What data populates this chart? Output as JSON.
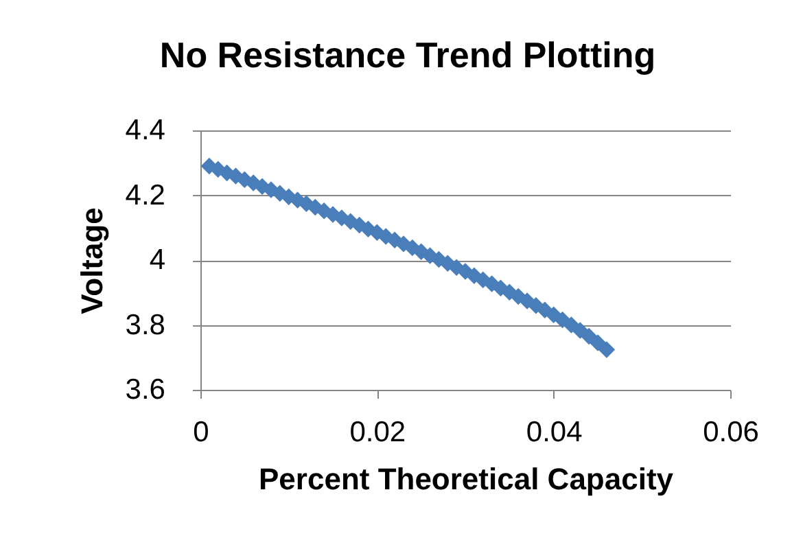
{
  "chart_data": {
    "type": "scatter",
    "title": "No Resistance Trend Plotting",
    "xlabel": "Percent Theoretical Capacity",
    "ylabel": "Voltage",
    "x": [
      0.001,
      0.002,
      0.003,
      0.004,
      0.005,
      0.006,
      0.007,
      0.008,
      0.009,
      0.01,
      0.011,
      0.012,
      0.013,
      0.014,
      0.015,
      0.016,
      0.017,
      0.018,
      0.019,
      0.02,
      0.021,
      0.022,
      0.023,
      0.024,
      0.025,
      0.026,
      0.027,
      0.028,
      0.029,
      0.03,
      0.031,
      0.032,
      0.033,
      0.034,
      0.035,
      0.036,
      0.037,
      0.038,
      0.039,
      0.04,
      0.041,
      0.042,
      0.043,
      0.044,
      0.045,
      0.046
    ],
    "values": [
      4.29,
      4.28,
      4.269,
      4.259,
      4.248,
      4.238,
      4.227,
      4.217,
      4.206,
      4.195,
      4.185,
      4.174,
      4.163,
      4.152,
      4.141,
      4.13,
      4.119,
      4.108,
      4.096,
      4.085,
      4.073,
      4.062,
      4.05,
      4.038,
      4.026,
      4.014,
      4.002,
      3.99,
      3.977,
      3.965,
      3.952,
      3.939,
      3.927,
      3.914,
      3.901,
      3.888,
      3.874,
      3.86,
      3.846,
      3.831,
      3.816,
      3.8,
      3.783,
      3.765,
      3.745,
      3.724
    ],
    "color": "#4a7ebb",
    "marker": "diamond",
    "xlim": [
      0,
      0.06
    ],
    "xticks": [
      0,
      0.02,
      0.04,
      0.06
    ],
    "ylim": [
      3.6,
      4.4
    ],
    "yticks": [
      3.6,
      3.8,
      4,
      4.2,
      4.4
    ],
    "grid": "y"
  }
}
